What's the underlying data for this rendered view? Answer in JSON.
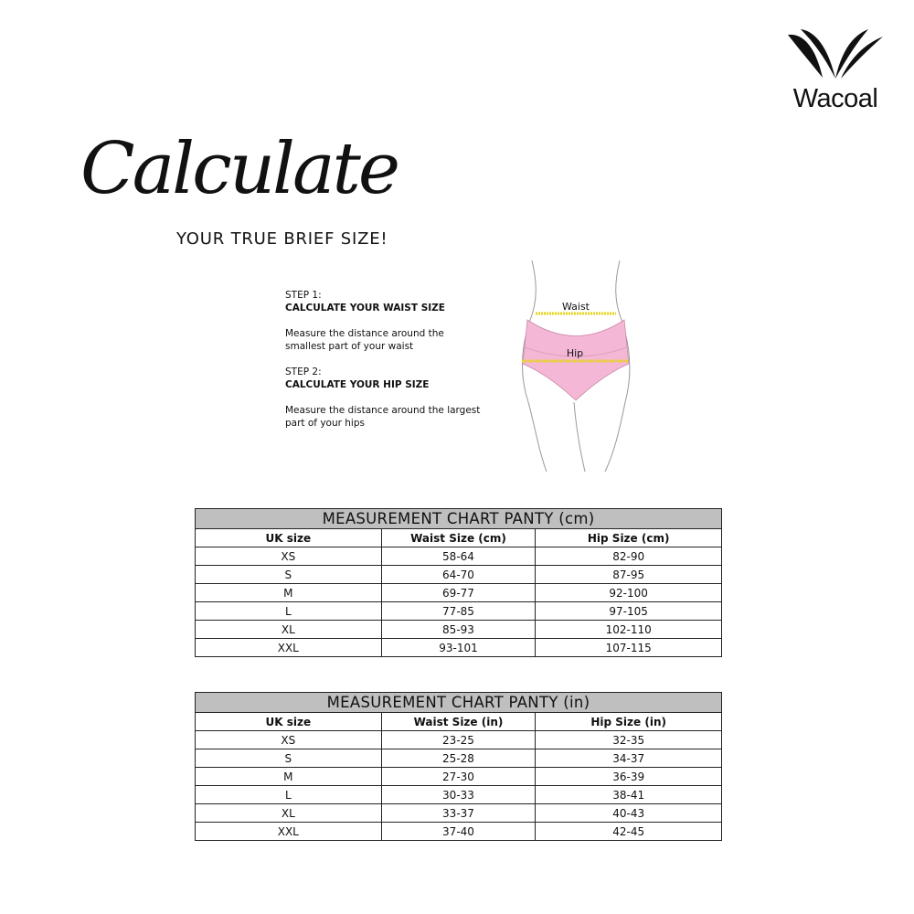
{
  "brand": {
    "name": "Wacoal"
  },
  "heading": {
    "script": "Calculate",
    "subtitle": "YOUR TRUE BRIEF SIZE!"
  },
  "steps": [
    {
      "label": "STEP 1:",
      "title": "CALCULATE YOUR WAIST SIZE",
      "text": [
        "Measure the distance around the",
        "smallest part of your waist"
      ]
    },
    {
      "label": "STEP 2:",
      "title": "CALCULATE YOUR HIP SIZE",
      "text": [
        "Measure the distance around the largest",
        "part of your hips"
      ]
    }
  ],
  "figure": {
    "waist_label": "Waist",
    "hip_label": "Hip",
    "panty_color": "#f4b8d6",
    "tape_color": "#e8d21a"
  },
  "tables": [
    {
      "title": "MEASUREMENT CHART PANTY (cm)",
      "headers": [
        "UK size",
        "Waist Size (cm)",
        "Hip Size (cm)"
      ],
      "rows": [
        [
          "XS",
          "58-64",
          "82-90"
        ],
        [
          "S",
          "64-70",
          "87-95"
        ],
        [
          "M",
          "69-77",
          "92-100"
        ],
        [
          "L",
          "77-85",
          "97-105"
        ],
        [
          "XL",
          "85-93",
          "102-110"
        ],
        [
          "XXL",
          "93-101",
          "107-115"
        ]
      ]
    },
    {
      "title": "MEASUREMENT CHART PANTY (in)",
      "headers": [
        "UK size",
        "Waist Size (in)",
        "Hip Size (in)"
      ],
      "rows": [
        [
          "XS",
          "23-25",
          "32-35"
        ],
        [
          "S",
          "25-28",
          "34-37"
        ],
        [
          "M",
          "27-30",
          "36-39"
        ],
        [
          "L",
          "30-33",
          "38-41"
        ],
        [
          "XL",
          "33-37",
          "40-43"
        ],
        [
          "XXL",
          "37-40",
          "42-45"
        ]
      ]
    }
  ]
}
